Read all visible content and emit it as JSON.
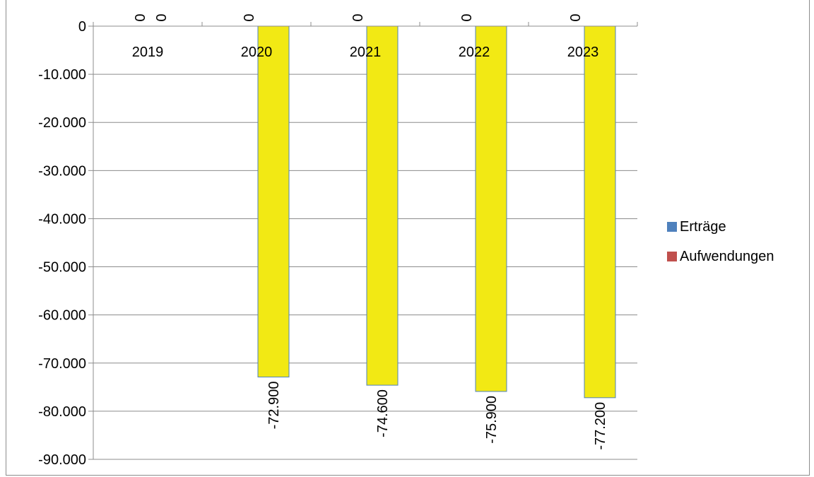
{
  "chart_data": {
    "type": "bar",
    "categories": [
      "2019",
      "2020",
      "2021",
      "2022",
      "2023"
    ],
    "series": [
      {
        "name": "Erträge",
        "values": [
          0,
          0,
          0,
          0,
          0
        ],
        "color": "#4f81bd"
      },
      {
        "name": "Aufwendungen",
        "values": [
          0,
          -72900,
          -74600,
          -75900,
          -77200
        ],
        "color": "#f2e914"
      }
    ],
    "series_data_labels": [
      [
        "0",
        "0",
        "0",
        "0",
        "0"
      ],
      [
        "0",
        "-72.900",
        "-74.600",
        "-75.900",
        "-77.200"
      ]
    ],
    "legend_swatch_colors": [
      "#4f81bd",
      "#c0504d"
    ],
    "yticks": [
      0,
      -10000,
      -20000,
      -30000,
      -40000,
      -50000,
      -60000,
      -70000,
      -80000,
      -90000
    ],
    "ytick_labels": [
      "0",
      "-10.000",
      "-20.000",
      "-30.000",
      "-40.000",
      "-50.000",
      "-60.000",
      "-70.000",
      "-80.000",
      "-90.000"
    ],
    "ylim": [
      -90000,
      0
    ],
    "legend_position": "right",
    "grid": true,
    "title": "",
    "xlabel": "",
    "ylabel": ""
  }
}
